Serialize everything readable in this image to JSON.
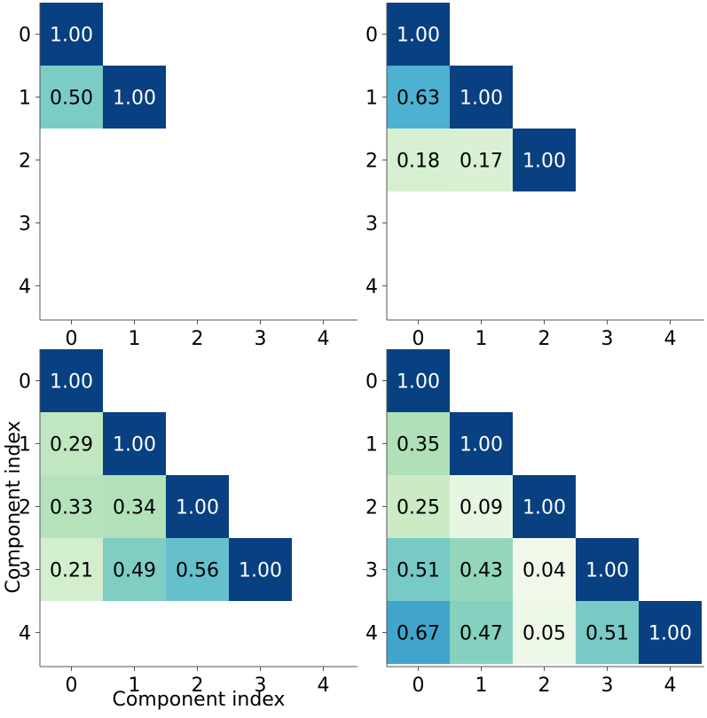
{
  "chart_data": [
    {
      "type": "heatmap",
      "title": "",
      "xlabel": "",
      "ylabel": "",
      "x_categories": [
        "0",
        "1",
        "2",
        "3",
        "4"
      ],
      "y_categories": [
        "0",
        "1",
        "2",
        "3",
        "4"
      ],
      "cells": [
        {
          "row": 0,
          "col": 0,
          "value": 1.0,
          "label": "1.00"
        },
        {
          "row": 1,
          "col": 0,
          "value": 0.5,
          "label": "0.50"
        },
        {
          "row": 1,
          "col": 1,
          "value": 1.0,
          "label": "1.00"
        }
      ],
      "vmin": 0,
      "vmax": 1,
      "colormap": "GnBu"
    },
    {
      "type": "heatmap",
      "title": "",
      "xlabel": "",
      "ylabel": "",
      "x_categories": [
        "0",
        "1",
        "2",
        "3",
        "4"
      ],
      "y_categories": [
        "0",
        "1",
        "2",
        "3",
        "4"
      ],
      "cells": [
        {
          "row": 0,
          "col": 0,
          "value": 1.0,
          "label": "1.00"
        },
        {
          "row": 1,
          "col": 0,
          "value": 0.63,
          "label": "0.63"
        },
        {
          "row": 1,
          "col": 1,
          "value": 1.0,
          "label": "1.00"
        },
        {
          "row": 2,
          "col": 0,
          "value": 0.18,
          "label": "0.18"
        },
        {
          "row": 2,
          "col": 1,
          "value": 0.17,
          "label": "0.17"
        },
        {
          "row": 2,
          "col": 2,
          "value": 1.0,
          "label": "1.00"
        }
      ],
      "vmin": 0,
      "vmax": 1,
      "colormap": "GnBu"
    },
    {
      "type": "heatmap",
      "title": "",
      "xlabel": "Component index",
      "ylabel": "Component index",
      "x_categories": [
        "0",
        "1",
        "2",
        "3",
        "4"
      ],
      "y_categories": [
        "0",
        "1",
        "2",
        "3",
        "4"
      ],
      "cells": [
        {
          "row": 0,
          "col": 0,
          "value": 1.0,
          "label": "1.00"
        },
        {
          "row": 1,
          "col": 0,
          "value": 0.29,
          "label": "0.29"
        },
        {
          "row": 1,
          "col": 1,
          "value": 1.0,
          "label": "1.00"
        },
        {
          "row": 2,
          "col": 0,
          "value": 0.33,
          "label": "0.33"
        },
        {
          "row": 2,
          "col": 1,
          "value": 0.34,
          "label": "0.34"
        },
        {
          "row": 2,
          "col": 2,
          "value": 1.0,
          "label": "1.00"
        },
        {
          "row": 3,
          "col": 0,
          "value": 0.21,
          "label": "0.21"
        },
        {
          "row": 3,
          "col": 1,
          "value": 0.49,
          "label": "0.49"
        },
        {
          "row": 3,
          "col": 2,
          "value": 0.56,
          "label": "0.56"
        },
        {
          "row": 3,
          "col": 3,
          "value": 1.0,
          "label": "1.00"
        }
      ],
      "vmin": 0,
      "vmax": 1,
      "colormap": "GnBu"
    },
    {
      "type": "heatmap",
      "title": "",
      "xlabel": "",
      "ylabel": "",
      "x_categories": [
        "0",
        "1",
        "2",
        "3",
        "4"
      ],
      "y_categories": [
        "0",
        "1",
        "2",
        "3",
        "4"
      ],
      "cells": [
        {
          "row": 0,
          "col": 0,
          "value": 1.0,
          "label": "1.00"
        },
        {
          "row": 1,
          "col": 0,
          "value": 0.35,
          "label": "0.35"
        },
        {
          "row": 1,
          "col": 1,
          "value": 1.0,
          "label": "1.00"
        },
        {
          "row": 2,
          "col": 0,
          "value": 0.25,
          "label": "0.25"
        },
        {
          "row": 2,
          "col": 1,
          "value": 0.09,
          "label": "0.09"
        },
        {
          "row": 2,
          "col": 2,
          "value": 1.0,
          "label": "1.00"
        },
        {
          "row": 3,
          "col": 0,
          "value": 0.51,
          "label": "0.51"
        },
        {
          "row": 3,
          "col": 1,
          "value": 0.43,
          "label": "0.43"
        },
        {
          "row": 3,
          "col": 2,
          "value": 0.04,
          "label": "0.04"
        },
        {
          "row": 3,
          "col": 3,
          "value": 1.0,
          "label": "1.00"
        },
        {
          "row": 4,
          "col": 0,
          "value": 0.67,
          "label": "0.67"
        },
        {
          "row": 4,
          "col": 1,
          "value": 0.47,
          "label": "0.47"
        },
        {
          "row": 4,
          "col": 2,
          "value": 0.05,
          "label": "0.05"
        },
        {
          "row": 4,
          "col": 3,
          "value": 0.51,
          "label": "0.51"
        },
        {
          "row": 4,
          "col": 4,
          "value": 1.0,
          "label": "1.00"
        }
      ],
      "vmin": 0,
      "vmax": 1,
      "colormap": "GnBu"
    }
  ],
  "colors": {
    "axis": "#555555",
    "text_dark": "#000000",
    "text_light": "#ffffff",
    "colormap_stops": [
      "#f7fcf0",
      "#e0f3db",
      "#ccebc5",
      "#a8ddb5",
      "#7bccc4",
      "#4eb3d3",
      "#2b8cbe",
      "#0868ac",
      "#084081"
    ]
  }
}
